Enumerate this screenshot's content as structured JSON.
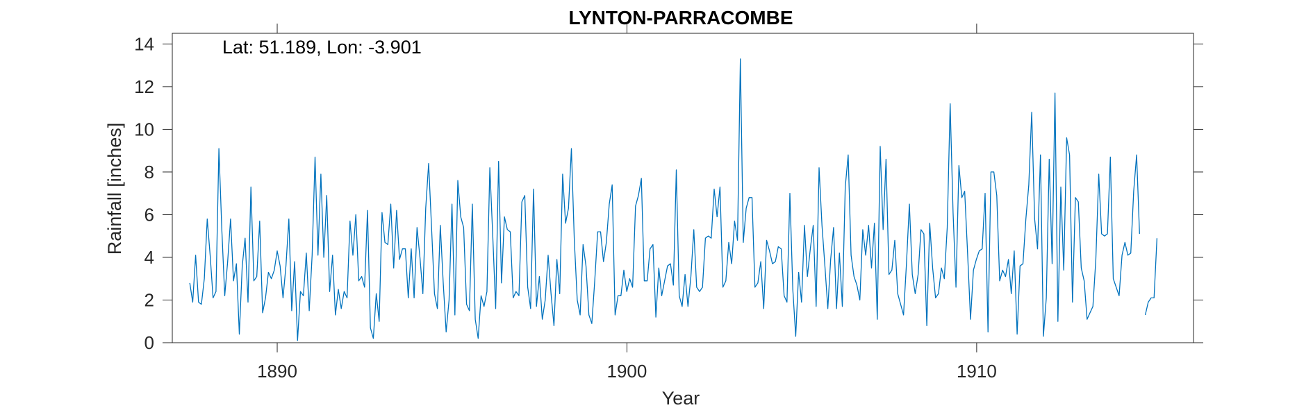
{
  "chart_data": {
    "type": "line",
    "title": "LYNTON-PARRACOMBE",
    "annotation": "Lat: 51.189, Lon: -3.901",
    "xlabel": "Year",
    "ylabel": "Rainfall [inches]",
    "xlim": [
      1887,
      1916.2
    ],
    "ylim": [
      0,
      14.5
    ],
    "xticks": [
      1890,
      1900,
      1910
    ],
    "yticks": [
      0,
      2,
      4,
      6,
      8,
      10,
      12,
      14
    ],
    "grid": false,
    "line_color": "#0072BD",
    "series": [
      {
        "start_year": 1887.5,
        "step": 0.0833,
        "values": [
          2.8,
          1.9,
          4.1,
          1.9,
          1.8,
          3.0,
          5.8,
          4.1,
          2.1,
          2.4,
          9.1,
          5.3,
          2.2,
          3.8,
          5.8,
          2.9,
          3.7,
          0.4,
          3.6,
          4.9,
          1.9,
          7.3,
          2.9,
          3.1,
          5.7,
          1.4,
          2.1,
          3.3,
          3.0,
          3.4,
          4.3,
          3.6,
          2.1,
          3.6,
          5.8,
          1.5,
          3.8,
          0.1,
          2.4,
          2.2,
          4.2,
          1.5,
          4.1,
          8.7,
          4.1,
          7.9,
          4.0,
          6.9,
          2.4,
          4.1,
          1.3,
          2.5,
          1.6,
          2.4,
          2.1,
          5.7,
          4.1,
          6.0,
          2.9,
          3.1,
          2.6,
          6.2,
          0.7,
          0.2,
          2.3,
          1.0,
          6.1,
          4.7,
          4.6,
          6.5,
          3.5,
          6.2,
          3.9,
          4.4,
          4.4,
          2.1,
          4.4,
          2.1,
          5.4,
          4.0,
          2.3,
          6.3,
          8.4,
          5.4,
          2.3,
          1.6,
          5.5,
          2.8,
          0.5,
          2.0,
          6.5,
          1.3,
          7.6,
          5.9,
          5.4,
          1.8,
          1.5,
          6.5,
          1.1,
          0.2,
          2.2,
          1.7,
          2.4,
          8.2,
          5.0,
          1.6,
          8.5,
          2.8,
          5.9,
          5.3,
          5.2,
          2.1,
          2.4,
          2.2,
          6.6,
          6.9,
          2.6,
          1.6,
          7.2,
          1.7,
          3.1,
          1.1,
          2.0,
          4.1,
          2.3,
          0.8,
          3.9,
          2.3,
          7.9,
          5.6,
          6.3,
          9.1,
          4.8,
          2.0,
          1.3,
          4.6,
          3.6,
          1.3,
          0.9,
          2.9,
          5.2,
          5.2,
          3.8,
          4.7,
          6.5,
          7.4,
          1.3,
          2.2,
          2.2,
          3.4,
          2.4,
          3.0,
          2.6,
          6.4,
          6.9,
          7.7,
          2.9,
          2.9,
          4.4,
          4.6,
          1.2,
          3.5,
          2.2,
          2.9,
          3.6,
          3.7,
          2.7,
          8.1,
          2.2,
          1.7,
          3.2,
          1.7,
          3.1,
          5.3,
          2.6,
          2.4,
          2.6,
          4.9,
          5.0,
          4.9,
          7.2,
          5.9,
          7.3,
          2.6,
          2.9,
          4.7,
          3.7,
          5.7,
          4.8,
          13.3,
          4.7,
          6.3,
          6.8,
          6.8,
          2.6,
          2.8,
          3.8,
          1.6,
          4.8,
          4.3,
          3.7,
          3.8,
          4.5,
          4.4,
          2.2,
          1.9,
          7.0,
          2.5,
          0.3,
          3.3,
          1.9,
          5.5,
          3.1,
          4.4,
          5.5,
          1.7,
          8.2,
          5.5,
          3.6,
          1.6,
          3.9,
          5.4,
          1.6,
          4.2,
          1.7,
          7.3,
          8.8,
          4.1,
          3.1,
          2.7,
          2.0,
          5.3,
          4.1,
          5.5,
          3.5,
          5.6,
          1.1,
          9.2,
          5.3,
          8.6,
          3.2,
          3.4,
          4.8,
          2.3,
          1.8,
          1.3,
          3.7,
          6.5,
          3.2,
          2.3,
          3.2,
          5.3,
          5.1,
          0.8,
          5.6,
          3.5,
          2.1,
          2.3,
          3.5,
          3.0,
          5.4,
          11.2,
          6.1,
          2.6,
          8.3,
          6.8,
          7.1,
          4.2,
          1.1,
          3.4,
          3.9,
          4.3,
          4.4,
          7.0,
          0.5,
          8.0,
          8.0,
          6.9,
          2.9,
          3.4,
          3.1,
          3.9,
          2.3,
          4.3,
          0.4,
          3.6,
          3.7,
          5.8,
          7.4,
          10.8,
          5.8,
          4.4,
          8.8,
          0.3,
          2.1,
          8.6,
          3.7,
          11.7,
          1.0,
          7.3,
          3.4,
          9.6,
          8.8,
          1.9,
          6.8,
          6.6,
          3.5,
          2.9,
          1.1,
          1.4,
          1.7,
          3.9,
          7.9,
          5.1,
          5.0,
          5.1,
          8.7,
          3.0,
          2.6,
          2.2,
          4.1,
          4.7,
          4.1,
          4.2,
          7.1,
          8.8,
          5.1,
          null,
          1.3,
          1.9,
          2.1,
          2.1,
          4.9
        ]
      }
    ]
  }
}
